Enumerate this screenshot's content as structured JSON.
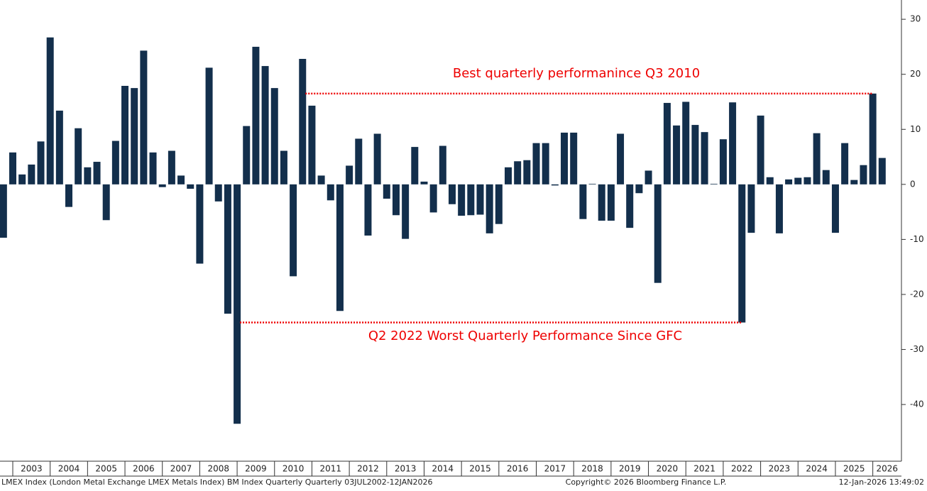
{
  "chart_data": {
    "type": "bar",
    "values": [
      -9.7,
      5.8,
      1.8,
      3.6,
      7.8,
      26.7,
      13.4,
      -4.1,
      10.2,
      3.1,
      4.1,
      -6.5,
      7.9,
      17.9,
      17.5,
      24.3,
      5.8,
      -0.5,
      6.1,
      1.6,
      -0.8,
      -14.4,
      21.2,
      -3.1,
      -23.5,
      -43.5,
      10.6,
      25.0,
      21.5,
      17.5,
      6.1,
      -16.7,
      22.8,
      14.3,
      1.6,
      -2.9,
      -23.0,
      3.4,
      8.3,
      -9.3,
      9.2,
      -2.6,
      -5.6,
      -9.9,
      6.8,
      0.5,
      -5.1,
      7.0,
      -3.6,
      -5.7,
      -5.6,
      -5.5,
      -8.9,
      -7.2,
      3.1,
      4.2,
      4.4,
      7.5,
      7.5,
      -0.2,
      9.4,
      9.4,
      -6.3,
      0.1,
      -6.6,
      -6.6,
      9.2,
      -7.9,
      -1.6,
      2.5,
      -17.9,
      14.8,
      10.7,
      15.0,
      10.8,
      9.5,
      0.1,
      8.2,
      14.9,
      -25.1,
      -8.8,
      12.5,
      1.3,
      -8.9,
      0.9,
      1.2,
      1.3,
      9.3,
      2.6,
      -8.8,
      7.5,
      0.8,
      3.5,
      16.5,
      4.8
    ],
    "color": "#132f4c",
    "year_labels": [
      "2003",
      "2004",
      "2005",
      "2006",
      "2007",
      "2008",
      "2009",
      "2010",
      "2011",
      "2012",
      "2013",
      "2014",
      "2015",
      "2016",
      "2017",
      "2018",
      "2019",
      "2020",
      "2021",
      "2022",
      "2023",
      "2024",
      "2025",
      "2026"
    ],
    "ylim": [
      -50.3,
      33.5
    ],
    "yticks": [
      -40,
      -30,
      -20,
      -10,
      0,
      10,
      20,
      30
    ],
    "annotations": [
      "Best quarterly performanince Q3 2010",
      "Q2 2022 Worst Quarterly Performance Since GFC"
    ],
    "footer": {
      "left": "LMEX Index (London Metal Exchange LMEX Metals Index) BM Index Quarterly Quarterly 03JUL2002-12JAN2026",
      "center": "Copyright© 2026 Bloomberg Finance L.P.",
      "right": "12-Jan-2026 13:49:02"
    }
  }
}
